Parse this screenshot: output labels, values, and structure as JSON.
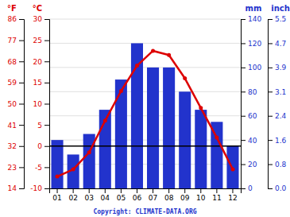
{
  "chart_data": {
    "type": "bar",
    "categories": [
      "01",
      "02",
      "03",
      "04",
      "05",
      "06",
      "07",
      "08",
      "09",
      "10",
      "11",
      "12"
    ],
    "series": [
      {
        "type": "bar",
        "color": "#2233cc",
        "axis": "y2",
        "values": [
          40,
          28,
          45,
          65,
          90,
          120,
          100,
          100,
          80,
          65,
          55,
          35
        ]
      },
      {
        "type": "line",
        "color": "#dd0000",
        "marker": "circle",
        "values": [
          -7.2,
          -5.5,
          -1.5,
          6.0,
          13.0,
          19.0,
          22.5,
          21.5,
          16.0,
          9.0,
          2.0,
          -5.5
        ]
      }
    ],
    "ylabel": "°C",
    "ylim": [
      -10,
      30
    ],
    "yticks": [
      -10,
      -5,
      0,
      5,
      10,
      15,
      20,
      25,
      30
    ],
    "ylabel_fahrenheit": "°F",
    "yticks_fahrenheit": [
      {
        "value": -10,
        "label": "14"
      },
      {
        "value": -5,
        "label": "23"
      },
      {
        "value": 0,
        "label": "32"
      },
      {
        "value": 5,
        "label": "41"
      },
      {
        "value": 10,
        "label": "50"
      },
      {
        "value": 15,
        "label": "59"
      },
      {
        "value": 20,
        "label": "68"
      },
      {
        "value": 25,
        "label": "77"
      },
      {
        "value": 30,
        "label": "86"
      }
    ],
    "y2label": "mm",
    "y2lim": [
      0,
      140
    ],
    "y2ticks": [
      0,
      20,
      40,
      60,
      80,
      100,
      120,
      140
    ],
    "y2label_inch": "inch",
    "y2ticks_inch": [
      {
        "value": 0,
        "label": "0.0"
      },
      {
        "value": 20,
        "label": "0.8"
      },
      {
        "value": 40,
        "label": "1.6"
      },
      {
        "value": 60,
        "label": "2.4"
      },
      {
        "value": 80,
        "label": "3.1"
      },
      {
        "value": 100,
        "label": "3.9"
      },
      {
        "value": 120,
        "label": "4.7"
      },
      {
        "value": 140,
        "label": "5.5"
      }
    ],
    "hlines": [
      0
    ],
    "grid": true,
    "annotations": [
      "Copyright: CLIMATE-DATA.ORG"
    ]
  }
}
